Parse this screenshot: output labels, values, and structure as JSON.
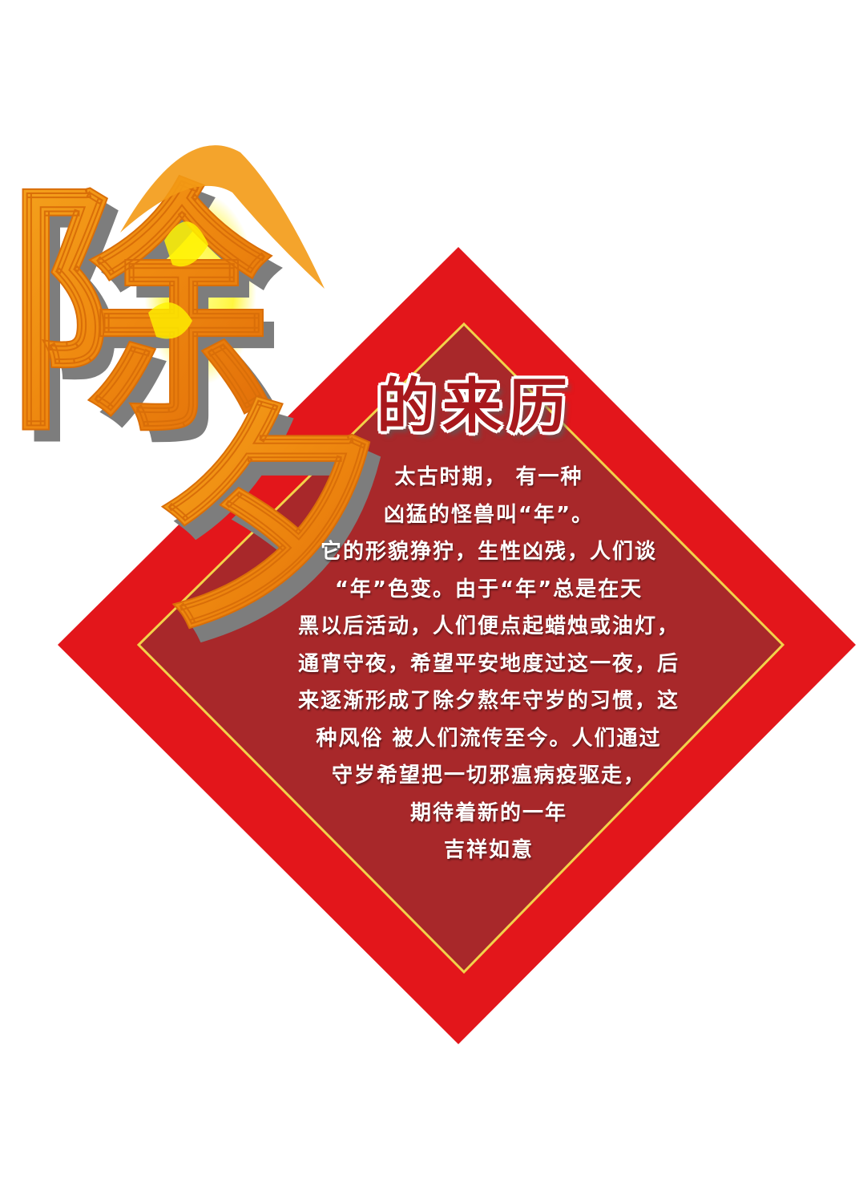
{
  "title": {
    "big_char_1": "除",
    "big_char_2": "夕",
    "subtitle": "的来历"
  },
  "body_lines": [
    "太古时期， 有一种",
    "凶猛的怪兽叫“年”。",
    "它的形貌狰狞，生性凶残，人们谈",
    "“年”色变。由于“年”总是在天",
    "黑以后活动，人们便点起蜡烛或油灯，",
    "通宵守夜，希望平安地度过这一夜，后",
    "来逐渐形成了除夕熬年守岁的习惯，这",
    "种风俗 被人们流传至今。人们通过",
    "守岁希望把一切邪瘟病疫驱走，",
    "期待着新的一年",
    "吉祥如意"
  ],
  "colors": {
    "outer_red": "#e3161b",
    "inner_maroon": "#a8282a",
    "gold_border": "#f2d24a",
    "title_orange": "#f08a12",
    "title_yellow": "#fff200",
    "title_shadow": "#7d7d7d",
    "subtitle_red": "#a8181c"
  }
}
